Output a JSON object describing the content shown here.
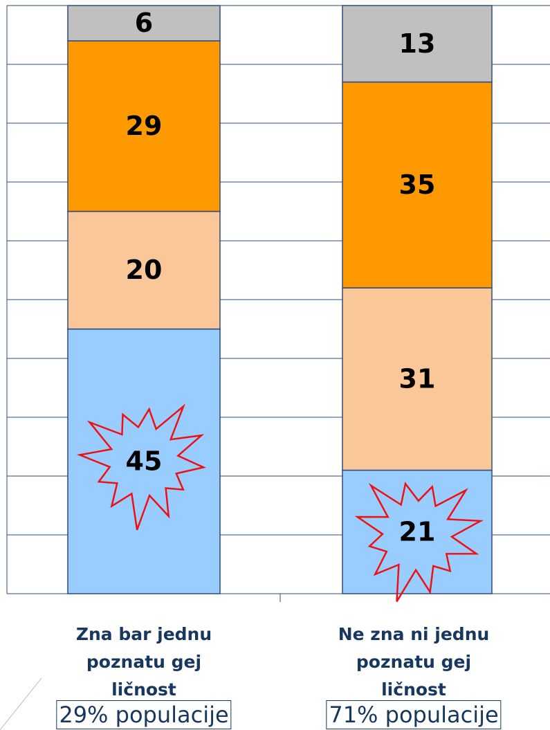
{
  "chart_data": {
    "type": "stacked_bar",
    "categories": [
      "Zna bar jednu poznatu gej ličnost",
      "Ne zna ni jednu poznatu gej ličnost"
    ],
    "category_notes": [
      "29% populacije",
      "71% populacije"
    ],
    "series": [
      {
        "color": "#99ccff",
        "values": [
          45,
          21
        ]
      },
      {
        "color": "#fac898",
        "values": [
          20,
          31
        ]
      },
      {
        "color": "#ff9900",
        "values": [
          29,
          35
        ]
      },
      {
        "color": "#c0c0c0",
        "values": [
          6,
          13
        ]
      }
    ],
    "ylim": [
      0,
      100
    ],
    "yticks": [
      0,
      10,
      20,
      30,
      40,
      50,
      60,
      70,
      80,
      90,
      100
    ],
    "grid": true
  }
}
